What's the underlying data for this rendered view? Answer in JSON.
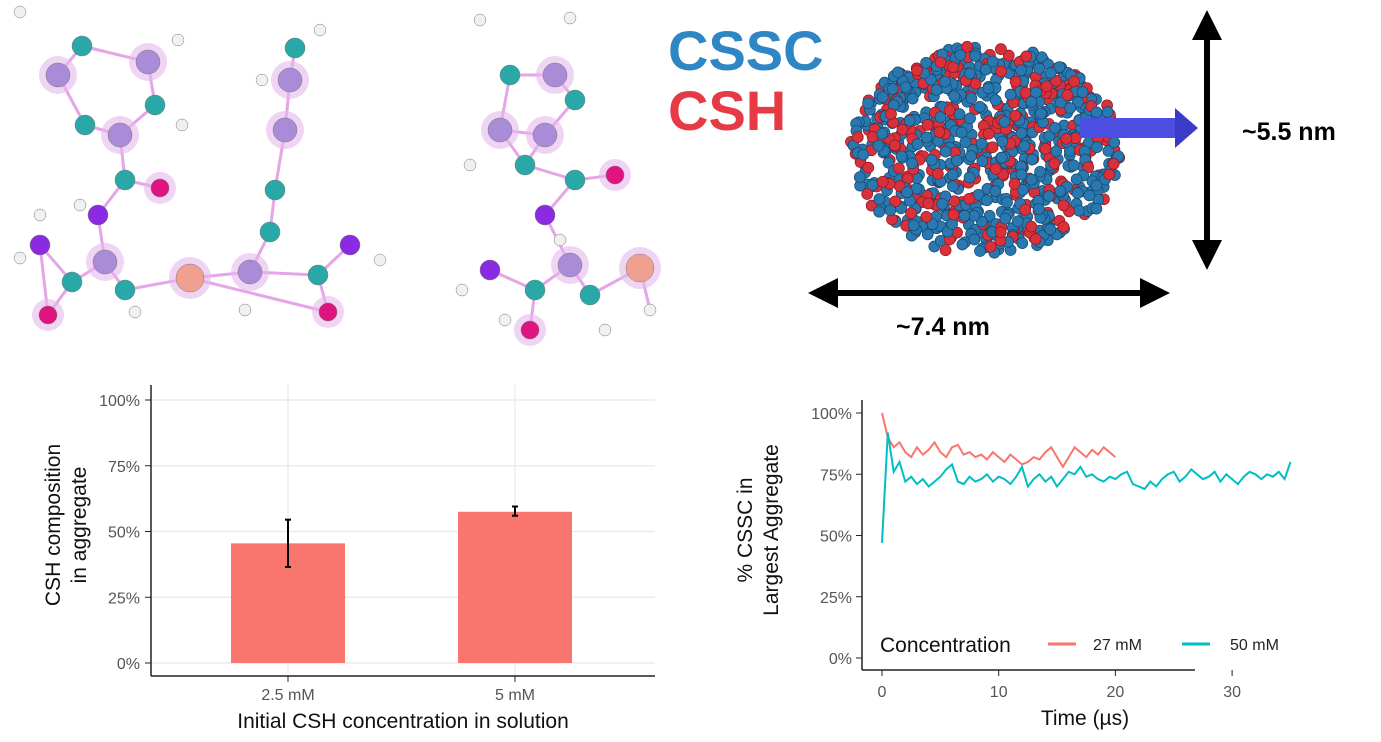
{
  "legend_labels": {
    "cssc": "CSSC",
    "csh": "CSH"
  },
  "colors": {
    "cssc": "#2f86c4",
    "csh": "#e63b45",
    "bar": "#f8766d",
    "line_27": "#f8766d",
    "line_50": "#00bfc4"
  },
  "dimensions": {
    "height": "~5.5 nm",
    "width": "~7.4 nm"
  },
  "chart_data": [
    {
      "type": "bar",
      "title": "",
      "xlabel": "Initial CSH concentration in solution",
      "ylabel_lines": [
        "CSH composition",
        "in aggregate"
      ],
      "categories": [
        "2.5 mM",
        "5 mM"
      ],
      "values": [
        45.5,
        57.5
      ],
      "error_low": [
        36.5,
        56
      ],
      "error_high": [
        54.5,
        59.5
      ],
      "ylim": [
        0,
        100
      ],
      "yticks": [
        "0%",
        "25%",
        "50%",
        "75%",
        "100%"
      ],
      "grid": true
    },
    {
      "type": "line",
      "title": "",
      "xlabel": "Time (µs)",
      "ylabel_lines": [
        "% CSSC in",
        "Largest Aggregate"
      ],
      "xlim": [
        0,
        35
      ],
      "ylim": [
        0,
        100
      ],
      "xticks": [
        "0",
        "10",
        "20",
        "30"
      ],
      "yticks": [
        "0%",
        "25%",
        "50%",
        "75%",
        "100%"
      ],
      "grid": false,
      "legend_title": "Concentration",
      "legend_position": "bottom-inside",
      "t_step": 0.5,
      "series": [
        {
          "name": "27 mM",
          "values": [
            100,
            90,
            86,
            88,
            84,
            82,
            86,
            83,
            85,
            88,
            84,
            82,
            86,
            87,
            83,
            84,
            82,
            83,
            81,
            84,
            82,
            80,
            83,
            81,
            79,
            80,
            82,
            81,
            84,
            86,
            82,
            78,
            82,
            86,
            84,
            82,
            85,
            83,
            86,
            84,
            82
          ]
        },
        {
          "name": "50 mM",
          "values": [
            47,
            92,
            76,
            80,
            72,
            74,
            71,
            73,
            70,
            72,
            74,
            77,
            79,
            72,
            71,
            74,
            72,
            73,
            75,
            72,
            74,
            73,
            71,
            74,
            78,
            70,
            73,
            75,
            72,
            74,
            70,
            73,
            76,
            75,
            78,
            74,
            75,
            73,
            72,
            74,
            73,
            75,
            76,
            71,
            70,
            69,
            72,
            70,
            73,
            75,
            76,
            72,
            74,
            77,
            75,
            73,
            74,
            76,
            72,
            75,
            73,
            71,
            74,
            76,
            75,
            73,
            75,
            74,
            76,
            73,
            80
          ]
        }
      ]
    }
  ]
}
